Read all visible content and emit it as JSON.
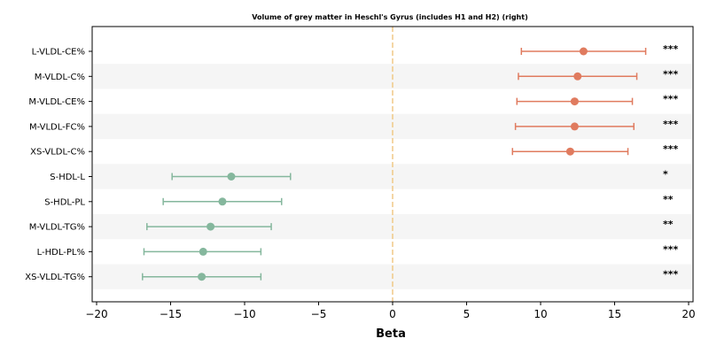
{
  "chart_data": {
    "type": "scatter",
    "title": "Volume of grey matter in Heschl's Gyrus (includes H1 and H2) (right)",
    "xlabel": "Beta",
    "ylabel": "",
    "xlim": [
      -20.3,
      20.3
    ],
    "xticks": [
      -20,
      -15,
      -10,
      -5,
      0,
      5,
      10,
      15,
      20
    ],
    "xtick_labels": [
      "−20",
      "−15",
      "−10",
      "−5",
      "0",
      "5",
      "10",
      "15",
      "20"
    ],
    "reference_line": 0,
    "grid": false,
    "legend": "none",
    "colors": {
      "positive": "#e07b5f",
      "negative": "#85b79d",
      "reference": "#f0c987",
      "band": "#f5f5f5"
    },
    "categories": [
      "L-VLDL-CE%",
      "M-VLDL-C%",
      "M-VLDL-CE%",
      "M-VLDL-FC%",
      "XS-VLDL-C%",
      "S-HDL-L",
      "S-HDL-PL",
      "M-VLDL-TG%",
      "L-HDL-PL%",
      "XS-VLDL-TG%"
    ],
    "beta": [
      12.9,
      12.5,
      12.3,
      12.3,
      12.0,
      -10.9,
      -11.5,
      -12.3,
      -12.8,
      -12.9
    ],
    "ci_low": [
      8.7,
      8.5,
      8.4,
      8.3,
      8.1,
      -14.9,
      -15.5,
      -16.6,
      -16.8,
      -16.9
    ],
    "ci_high": [
      17.1,
      16.5,
      16.2,
      16.3,
      15.9,
      -6.9,
      -7.5,
      -8.2,
      -8.9,
      -8.9
    ],
    "significance": [
      "***",
      "***",
      "***",
      "***",
      "***",
      "*",
      "**",
      "**",
      "***",
      "***"
    ]
  }
}
